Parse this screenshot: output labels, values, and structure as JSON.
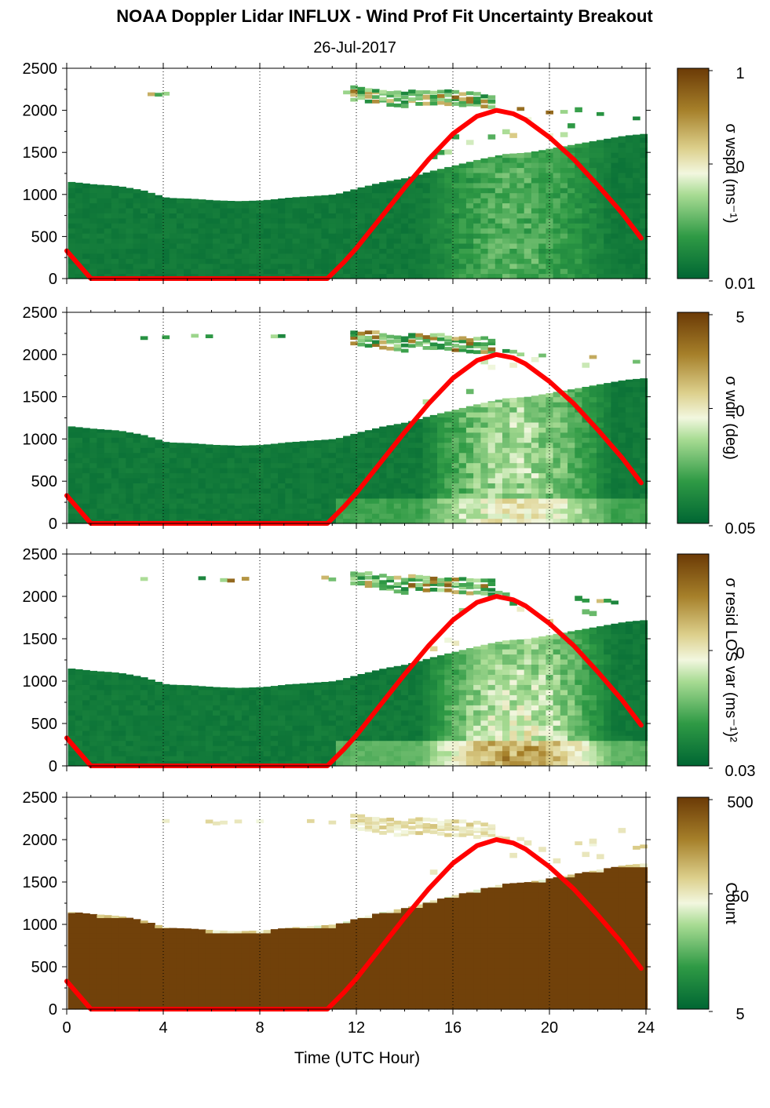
{
  "title": "NOAA Doppler Lidar INFLUX - Wind Prof Fit Uncertainty Breakout",
  "subtitle": "26-Jul-2017",
  "xlabel": "Time (UTC Hour)",
  "colors": {
    "overlay_line": "#ff0000",
    "colormap_low": "#006633",
    "colormap_mid": "#f2f7df",
    "colormap_high": "#6b3a06"
  },
  "chart_data": [
    {
      "type": "heatmap",
      "colorbar": {
        "label": "σ wspd (ms⁻¹)",
        "ticks": [
          "1",
          "0",
          "0.01"
        ],
        "scale": "log"
      },
      "xlim": [
        0,
        24
      ],
      "ylim": [
        0,
        2500
      ],
      "xticks": [
        "0",
        "4",
        "8",
        "12",
        "16",
        "20",
        "24"
      ],
      "yticks": [
        "0",
        "500",
        "1000",
        "1500",
        "2000",
        "2500"
      ],
      "grid": "vertical dotted at 4-hour intervals",
      "boundary_layer_top_m": [
        {
          "hour": 0,
          "top": 1150
        },
        {
          "hour": 1,
          "top": 1120
        },
        {
          "hour": 2,
          "top": 1100
        },
        {
          "hour": 3,
          "top": 1050
        },
        {
          "hour": 4,
          "top": 960
        },
        {
          "hour": 5,
          "top": 950
        },
        {
          "hour": 6,
          "top": 930
        },
        {
          "hour": 7,
          "top": 920
        },
        {
          "hour": 8,
          "top": 930
        },
        {
          "hour": 9,
          "top": 960
        },
        {
          "hour": 10,
          "top": 980
        },
        {
          "hour": 11,
          "top": 1000
        },
        {
          "hour": 12,
          "top": 1080
        },
        {
          "hour": 13,
          "top": 1150
        },
        {
          "hour": 14,
          "top": 1200
        },
        {
          "hour": 15,
          "top": 1280
        },
        {
          "hour": 16,
          "top": 1350
        },
        {
          "hour": 17,
          "top": 1420
        },
        {
          "hour": 18,
          "top": 1480
        },
        {
          "hour": 19,
          "top": 1500
        },
        {
          "hour": 20,
          "top": 1550
        },
        {
          "hour": 21,
          "top": 1600
        },
        {
          "hour": 22,
          "top": 1650
        },
        {
          "hour": 23,
          "top": 1700
        },
        {
          "hour": 23.8,
          "top": 1720
        }
      ],
      "overlay_line": {
        "x": [
          0,
          1,
          10.8,
          11.5,
          12,
          13,
          14,
          15,
          16,
          17,
          17.8,
          18.5,
          19,
          20,
          21,
          22,
          23,
          23.8
        ],
        "y": [
          330,
          0,
          0,
          200,
          360,
          720,
          1080,
          1420,
          1720,
          1930,
          2000,
          1960,
          1890,
          1680,
          1420,
          1110,
          780,
          480
        ]
      }
    },
    {
      "type": "heatmap",
      "colorbar": {
        "label": "σ wdir (deg)",
        "ticks": [
          "5",
          "0",
          "0.05"
        ],
        "scale": "log"
      },
      "xlim": [
        0,
        24
      ],
      "ylim": [
        0,
        2500
      ],
      "xticks": [
        "0",
        "4",
        "8",
        "12",
        "16",
        "20",
        "24"
      ],
      "yticks": [
        "0",
        "500",
        "1000",
        "1500",
        "2000",
        "2500"
      ],
      "grid": "vertical dotted at 4-hour intervals",
      "overlay_line": {
        "x": [
          0,
          1,
          10.8,
          11.5,
          12,
          13,
          14,
          15,
          16,
          17,
          17.8,
          18.5,
          19,
          20,
          21,
          22,
          23,
          23.8
        ],
        "y": [
          330,
          0,
          0,
          200,
          360,
          720,
          1080,
          1420,
          1720,
          1930,
          2000,
          1960,
          1890,
          1680,
          1420,
          1110,
          780,
          480
        ]
      }
    },
    {
      "type": "heatmap",
      "colorbar": {
        "label": "σ resid LOS var (ms⁻¹)²",
        "ticks": [
          "",
          "0",
          "0.03"
        ],
        "scale": "log"
      },
      "xlim": [
        0,
        24
      ],
      "ylim": [
        0,
        2500
      ],
      "xticks": [
        "0",
        "4",
        "8",
        "12",
        "16",
        "20",
        "24"
      ],
      "yticks": [
        "0",
        "500",
        "1000",
        "1500",
        "2000",
        "2500"
      ],
      "grid": "vertical dotted at 4-hour intervals",
      "overlay_line": {
        "x": [
          0,
          1,
          10.8,
          11.5,
          12,
          13,
          14,
          15,
          16,
          17,
          17.8,
          18.5,
          19,
          20,
          21,
          22,
          23,
          23.8
        ],
        "y": [
          330,
          0,
          0,
          200,
          360,
          720,
          1080,
          1420,
          1720,
          1930,
          2000,
          1960,
          1890,
          1680,
          1420,
          1110,
          780,
          480
        ]
      }
    },
    {
      "type": "heatmap",
      "colorbar": {
        "label": "Count",
        "ticks": [
          "500",
          "50",
          "5"
        ],
        "scale": "log"
      },
      "xlim": [
        0,
        24
      ],
      "ylim": [
        0,
        2500
      ],
      "xticks": [
        "0",
        "4",
        "8",
        "12",
        "16",
        "20",
        "24"
      ],
      "yticks": [
        "0",
        "500",
        "1000",
        "1500",
        "2000",
        "2500"
      ],
      "grid": "vertical dotted at 4-hour intervals",
      "overlay_line": {
        "x": [
          0,
          1,
          10.8,
          11.5,
          12,
          13,
          14,
          15,
          16,
          17,
          17.8,
          18.5,
          19,
          20,
          21,
          22,
          23,
          23.8
        ],
        "y": [
          330,
          0,
          0,
          200,
          360,
          720,
          1080,
          1420,
          1720,
          1930,
          2000,
          1960,
          1890,
          1680,
          1420,
          1110,
          780,
          480
        ]
      }
    }
  ]
}
